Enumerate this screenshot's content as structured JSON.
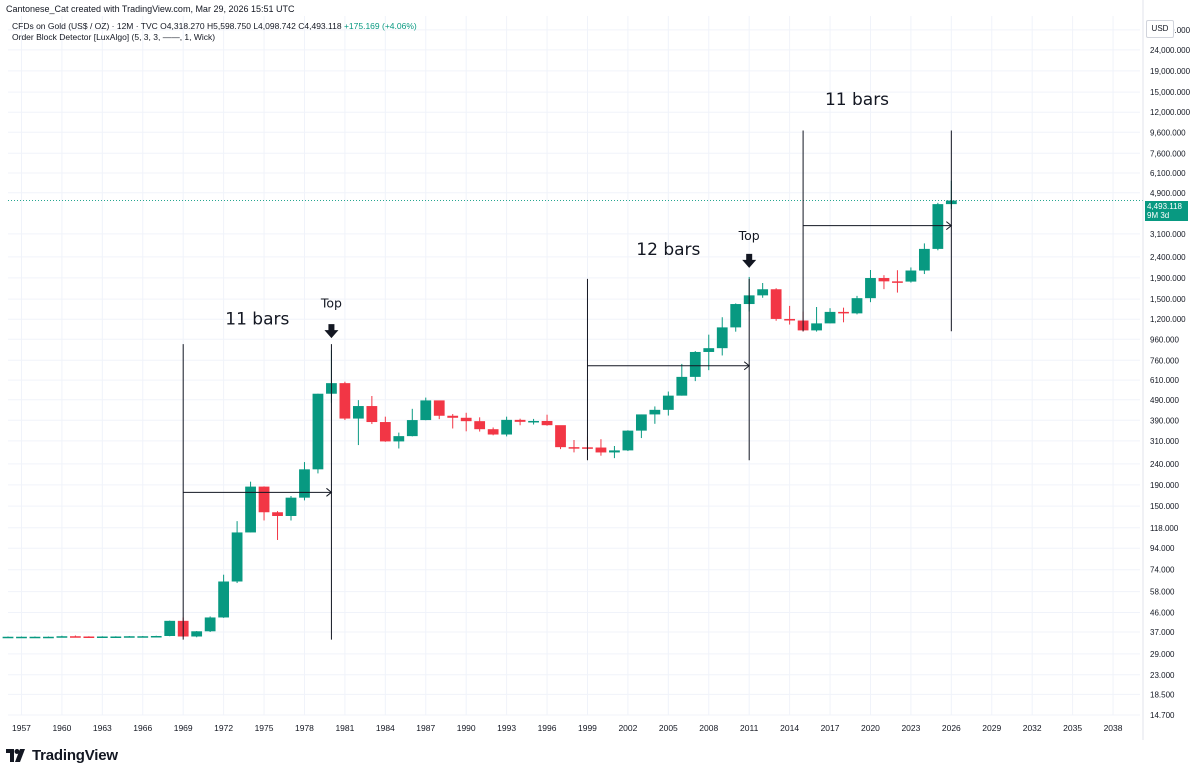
{
  "header": {
    "credit": "Cantonese_Cat created with TradingView.com, Mar 29, 2026 15:51 UTC",
    "symbol": "CFDs on Gold (US$ / OZ) · 12M · TVC",
    "ohlc": {
      "o": "O4,318.270",
      "h": "H5,598.750",
      "l": "L4,098.742",
      "c": "C4,493.118",
      "chg": "+175.169 (+4.06%)"
    },
    "indicator": "Order Block Detector [LuxAlgo] (5, 3, 3, ——, 1, Wick)"
  },
  "currency": "USD",
  "price_tag": {
    "price": "4,493.118",
    "countdown": "9M 3d"
  },
  "footer": {
    "logo_text": "TradingView"
  },
  "colors": {
    "up": "#089981",
    "down": "#f23645",
    "grid": "#f0f3fa",
    "last_price_line": "#089981"
  },
  "chart_data": {
    "type": "candlestick",
    "y_scale": "log",
    "ylim": [
      14.7,
      35000
    ],
    "xlim": [
      1956,
      2040
    ],
    "x_ticks": [
      "1957",
      "1960",
      "1963",
      "1966",
      "1969",
      "1972",
      "1975",
      "1978",
      "1981",
      "1984",
      "1987",
      "1990",
      "1993",
      "1996",
      "1999",
      "2002",
      "2005",
      "2008",
      "2011",
      "2014",
      "2017",
      "2020",
      "2023",
      "2026",
      "2029",
      "2032",
      "2035",
      "2038"
    ],
    "y_ticks": [
      "30,000.000",
      "24,000.000",
      "19,000.000",
      "15,000.000",
      "12,000.000",
      "9,600.000",
      "7,600.000",
      "6,100.000",
      "4,900.000",
      "3,100.000",
      "2,400.000",
      "1,900.000",
      "1,500.000",
      "1,200.000",
      "960.000",
      "760.000",
      "610.000",
      "490.000",
      "390.000",
      "310.000",
      "240.000",
      "190.000",
      "150.000",
      "118.000",
      "94.000",
      "74.000",
      "58.000",
      "46.000",
      "37.000",
      "29.000",
      "23.000",
      "18.500",
      "14.700"
    ],
    "candles": [
      {
        "year": 1956,
        "o": 35,
        "h": 35.2,
        "l": 34.9,
        "c": 35.1
      },
      {
        "year": 1957,
        "o": 35,
        "h": 35.2,
        "l": 34.9,
        "c": 35.1
      },
      {
        "year": 1958,
        "o": 35,
        "h": 35.2,
        "l": 34.9,
        "c": 35.1
      },
      {
        "year": 1959,
        "o": 35,
        "h": 35.2,
        "l": 34.9,
        "c": 35.1
      },
      {
        "year": 1960,
        "o": 35,
        "h": 35.5,
        "l": 34.9,
        "c": 35.3
      },
      {
        "year": 1961,
        "o": 35.3,
        "h": 35.6,
        "l": 35,
        "c": 35.2
      },
      {
        "year": 1962,
        "o": 35.2,
        "h": 35.3,
        "l": 35,
        "c": 35.1
      },
      {
        "year": 1963,
        "o": 35.1,
        "h": 35.3,
        "l": 35,
        "c": 35.2
      },
      {
        "year": 1964,
        "o": 35.2,
        "h": 35.3,
        "l": 35,
        "c": 35.2
      },
      {
        "year": 1965,
        "o": 35.2,
        "h": 35.4,
        "l": 35,
        "c": 35.3
      },
      {
        "year": 1966,
        "o": 35.3,
        "h": 35.4,
        "l": 35.1,
        "c": 35.3
      },
      {
        "year": 1967,
        "o": 35.3,
        "h": 35.5,
        "l": 35.1,
        "c": 35.4
      },
      {
        "year": 1968,
        "o": 35.4,
        "h": 42,
        "l": 35.3,
        "c": 41.9
      },
      {
        "year": 1969,
        "o": 41.9,
        "h": 43.5,
        "l": 35.0,
        "c": 35.2
      },
      {
        "year": 1970,
        "o": 35.2,
        "h": 37.4,
        "l": 34.9,
        "c": 37.3
      },
      {
        "year": 1971,
        "o": 37.3,
        "h": 44,
        "l": 37,
        "c": 43.5
      },
      {
        "year": 1972,
        "o": 43.5,
        "h": 70,
        "l": 43.3,
        "c": 64.9
      },
      {
        "year": 1973,
        "o": 64.9,
        "h": 127,
        "l": 63.8,
        "c": 112
      },
      {
        "year": 1974,
        "o": 112,
        "h": 197,
        "l": 112,
        "c": 186.5
      },
      {
        "year": 1975,
        "o": 186.5,
        "h": 187,
        "l": 128,
        "c": 140.2
      },
      {
        "year": 1976,
        "o": 140.2,
        "h": 142,
        "l": 103,
        "c": 134.5
      },
      {
        "year": 1977,
        "o": 134.5,
        "h": 168,
        "l": 128,
        "c": 164.9
      },
      {
        "year": 1978,
        "o": 164.9,
        "h": 245,
        "l": 160,
        "c": 226
      },
      {
        "year": 1979,
        "o": 226,
        "h": 524,
        "l": 216,
        "c": 524
      },
      {
        "year": 1980,
        "o": 524,
        "h": 850,
        "l": 474,
        "c": 589.5
      },
      {
        "year": 1981,
        "o": 589.5,
        "h": 599,
        "l": 391,
        "c": 397.5
      },
      {
        "year": 1982,
        "o": 397.5,
        "h": 488,
        "l": 296,
        "c": 456.9
      },
      {
        "year": 1983,
        "o": 456.9,
        "h": 511,
        "l": 374,
        "c": 382.4
      },
      {
        "year": 1984,
        "o": 382.4,
        "h": 406,
        "l": 307,
        "c": 308.3
      },
      {
        "year": 1985,
        "o": 308.3,
        "h": 340,
        "l": 285,
        "c": 327
      },
      {
        "year": 1986,
        "o": 327,
        "h": 443,
        "l": 326,
        "c": 390.9
      },
      {
        "year": 1987,
        "o": 390.9,
        "h": 502,
        "l": 390,
        "c": 486.5
      },
      {
        "year": 1988,
        "o": 486.5,
        "h": 485,
        "l": 395,
        "c": 410.1
      },
      {
        "year": 1989,
        "o": 410.1,
        "h": 418,
        "l": 356,
        "c": 401
      },
      {
        "year": 1990,
        "o": 401,
        "h": 424,
        "l": 345,
        "c": 386.2
      },
      {
        "year": 1991,
        "o": 386.2,
        "h": 403,
        "l": 344,
        "c": 353.2
      },
      {
        "year": 1992,
        "o": 353.2,
        "h": 360,
        "l": 330,
        "c": 332.9
      },
      {
        "year": 1993,
        "o": 332.9,
        "h": 406,
        "l": 326,
        "c": 391.8
      },
      {
        "year": 1994,
        "o": 391.8,
        "h": 397,
        "l": 369,
        "c": 383.3
      },
      {
        "year": 1995,
        "o": 383.3,
        "h": 396,
        "l": 372,
        "c": 387
      },
      {
        "year": 1996,
        "o": 387,
        "h": 415,
        "l": 367,
        "c": 369.3
      },
      {
        "year": 1997,
        "o": 369.3,
        "h": 367,
        "l": 283,
        "c": 289.2
      },
      {
        "year": 1998,
        "o": 289.2,
        "h": 313,
        "l": 273,
        "c": 288.7
      },
      {
        "year": 1999,
        "o": 288.7,
        "h": 326,
        "l": 252,
        "c": 288
      },
      {
        "year": 2000,
        "o": 288,
        "h": 316,
        "l": 263,
        "c": 272.7
      },
      {
        "year": 2001,
        "o": 272.7,
        "h": 293,
        "l": 256,
        "c": 279
      },
      {
        "year": 2002,
        "o": 279,
        "h": 349,
        "l": 277,
        "c": 347.6
      },
      {
        "year": 2003,
        "o": 347.6,
        "h": 416,
        "l": 320,
        "c": 416.3
      },
      {
        "year": 2004,
        "o": 416.3,
        "h": 455,
        "l": 375,
        "c": 438
      },
      {
        "year": 2005,
        "o": 438,
        "h": 537,
        "l": 411,
        "c": 513
      },
      {
        "year": 2006,
        "o": 513,
        "h": 730,
        "l": 513,
        "c": 632
      },
      {
        "year": 2007,
        "o": 632,
        "h": 842,
        "l": 603,
        "c": 833.8
      },
      {
        "year": 2008,
        "o": 833.8,
        "h": 1011,
        "l": 681,
        "c": 869.8
      },
      {
        "year": 2009,
        "o": 869.8,
        "h": 1227,
        "l": 802,
        "c": 1096
      },
      {
        "year": 2010,
        "o": 1096,
        "h": 1431,
        "l": 1045,
        "c": 1421
      },
      {
        "year": 2011,
        "o": 1421,
        "h": 1921,
        "l": 1308,
        "c": 1565
      },
      {
        "year": 2012,
        "o": 1565,
        "h": 1796,
        "l": 1523,
        "c": 1675
      },
      {
        "year": 2013,
        "o": 1675,
        "h": 1694,
        "l": 1180,
        "c": 1204
      },
      {
        "year": 2014,
        "o": 1204,
        "h": 1392,
        "l": 1131,
        "c": 1183
      },
      {
        "year": 2015,
        "o": 1183,
        "h": 1307,
        "l": 1046,
        "c": 1060
      },
      {
        "year": 2016,
        "o": 1060,
        "h": 1375,
        "l": 1046,
        "c": 1146
      },
      {
        "year": 2017,
        "o": 1146,
        "h": 1357,
        "l": 1146,
        "c": 1302
      },
      {
        "year": 2018,
        "o": 1302,
        "h": 1365,
        "l": 1160,
        "c": 1281
      },
      {
        "year": 2019,
        "o": 1281,
        "h": 1557,
        "l": 1266,
        "c": 1517
      },
      {
        "year": 2020,
        "o": 1517,
        "h": 2075,
        "l": 1451,
        "c": 1898
      },
      {
        "year": 2021,
        "o": 1898,
        "h": 1959,
        "l": 1677,
        "c": 1829
      },
      {
        "year": 2022,
        "o": 1829,
        "h": 2070,
        "l": 1614,
        "c": 1824
      },
      {
        "year": 2023,
        "o": 1824,
        "h": 2135,
        "l": 1804,
        "c": 2063
      },
      {
        "year": 2024,
        "o": 2063,
        "h": 2790,
        "l": 1984,
        "c": 2624
      },
      {
        "year": 2025,
        "o": 2624,
        "h": 4381,
        "l": 2584,
        "c": 4318
      },
      {
        "year": 2026,
        "o": 4318.27,
        "h": 5598.75,
        "l": 4098.742,
        "c": 4493.118
      }
    ],
    "last_price": 4493.118,
    "annotations": [
      {
        "type": "text",
        "label": "11 bars",
        "year": 1974.5,
        "price": 1130
      },
      {
        "type": "text",
        "label": "Top",
        "year": 1980.0,
        "price": 1370
      },
      {
        "type": "arrow_down",
        "year": 1980.0,
        "price": 1040
      },
      {
        "type": "text",
        "label": "12 bars",
        "year": 2005.0,
        "price": 2450
      },
      {
        "type": "text",
        "label": "Top",
        "year": 2011.0,
        "price": 2900
      },
      {
        "type": "arrow_down",
        "year": 2011.0,
        "price": 2270
      },
      {
        "type": "text",
        "label": "11 bars",
        "year": 2019.0,
        "price": 13000
      },
      {
        "type": "vline",
        "year": 1969.0,
        "from": 34,
        "to": 910
      },
      {
        "type": "vline",
        "year": 1980.0,
        "from": 34,
        "to": 910
      },
      {
        "type": "hline_arrow",
        "from_year": 1969.0,
        "to_year": 1980.0,
        "price": 175
      },
      {
        "type": "vline",
        "year": 1999.0,
        "from": 250,
        "to": 1880
      },
      {
        "type": "vline",
        "year": 2011.0,
        "from": 250,
        "to": 1880
      },
      {
        "type": "hline_arrow",
        "from_year": 1999.0,
        "to_year": 2011.0,
        "price": 715
      },
      {
        "type": "vline",
        "year": 2015.0,
        "from": 1050,
        "to": 9800
      },
      {
        "type": "vline",
        "year": 2026.0,
        "from": 1050,
        "to": 9800
      },
      {
        "type": "hline_arrow",
        "from_year": 2015.0,
        "to_year": 2026.0,
        "price": 3400
      }
    ]
  }
}
